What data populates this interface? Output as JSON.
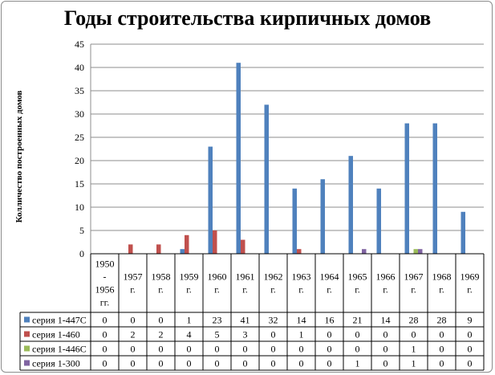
{
  "chart_data": {
    "type": "bar",
    "title": "Годы строительства кирпичных домов",
    "ylabel": "Колличество построенных домов",
    "xlabel": "",
    "ylim": [
      0,
      45
    ],
    "yticks": [
      0,
      5,
      10,
      15,
      20,
      25,
      30,
      35,
      40,
      45
    ],
    "grid": true,
    "legend": "data-table-left",
    "categories": [
      [
        "1950",
        "-",
        "1956",
        "гг."
      ],
      [
        "1957",
        "г."
      ],
      [
        "1958",
        "г."
      ],
      [
        "1959",
        "г."
      ],
      [
        "1960",
        "г."
      ],
      [
        "1961",
        "г."
      ],
      [
        "1962",
        "г."
      ],
      [
        "1963",
        "г."
      ],
      [
        "1964",
        "г."
      ],
      [
        "1965",
        "г."
      ],
      [
        "1966",
        "г."
      ],
      [
        "1967",
        "г."
      ],
      [
        "1968",
        "г."
      ],
      [
        "1969",
        "г."
      ]
    ],
    "series": [
      {
        "name": "серия 1-447С",
        "color": "#4f81bd",
        "values": [
          0,
          0,
          0,
          1,
          23,
          41,
          32,
          14,
          16,
          21,
          14,
          28,
          28,
          9
        ]
      },
      {
        "name": "серия 1-460",
        "color": "#c0504d",
        "values": [
          0,
          2,
          2,
          4,
          5,
          3,
          0,
          1,
          0,
          0,
          0,
          0,
          0,
          0
        ]
      },
      {
        "name": "серия 1-446С",
        "color": "#9bbb59",
        "values": [
          0,
          0,
          0,
          0,
          0,
          0,
          0,
          0,
          0,
          0,
          0,
          1,
          0,
          0
        ]
      },
      {
        "name": "серия 1-300",
        "color": "#8064a2",
        "values": [
          0,
          0,
          0,
          0,
          0,
          0,
          0,
          0,
          0,
          1,
          0,
          1,
          0,
          0
        ]
      }
    ]
  }
}
